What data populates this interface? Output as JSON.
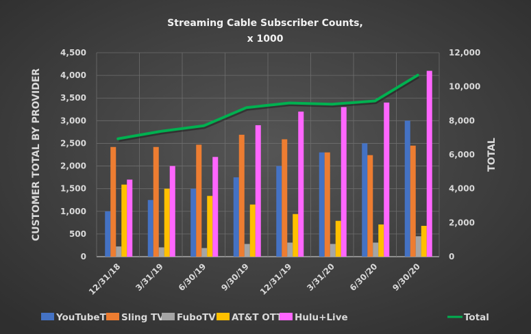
{
  "chart_data": {
    "type": "bar",
    "title": "Streaming Cable Subscriber Counts, x 1000",
    "title_lines": [
      "Streaming Cable Subscriber Counts,",
      "x 1000"
    ],
    "ylabel": "CUSTOMER TOTAL BY PROVIDER",
    "y2label": "TOTAL",
    "ylim": [
      0,
      4500
    ],
    "y2lim": [
      0,
      12000
    ],
    "yticks": [
      "0",
      "500",
      "1,000",
      "1,500",
      "2,000",
      "2,500",
      "3,000",
      "3,500",
      "4,000",
      "4,500"
    ],
    "y2ticks": [
      "0",
      "2,000",
      "4,000",
      "6,000",
      "8,000",
      "10,000",
      "12,000"
    ],
    "grid": true,
    "legend_position": "bottom",
    "categories": [
      "12/31/18",
      "3/31/19",
      "6/30/19",
      "9/30/19",
      "12/31/19",
      "3/31/20",
      "6/30/20",
      "9/30/20"
    ],
    "series": [
      {
        "name": "YouTubeTV",
        "type": "bar",
        "axis": "left",
        "color": "#4472c4",
        "values": [
          1000,
          1250,
          1500,
          1750,
          2000,
          2300,
          2500,
          3000
        ]
      },
      {
        "name": "Sling TV",
        "type": "bar",
        "axis": "left",
        "color": "#ed7d31",
        "values": [
          2420,
          2420,
          2470,
          2690,
          2590,
          2300,
          2240,
          2450
        ]
      },
      {
        "name": "FuboTV",
        "type": "bar",
        "axis": "left",
        "color": "#a5a5a5",
        "values": [
          225,
          205,
          190,
          280,
          310,
          280,
          310,
          450
        ]
      },
      {
        "name": "AT&T OTT",
        "type": "bar",
        "axis": "left",
        "color": "#ffc000",
        "values": [
          1590,
          1500,
          1340,
          1150,
          940,
          790,
          710,
          680
        ]
      },
      {
        "name": "Hulu+Live",
        "type": "bar",
        "axis": "left",
        "color": "#ff66ff",
        "values": [
          1700,
          2000,
          2200,
          2900,
          3200,
          3300,
          3400,
          4100
        ]
      },
      {
        "name": "Total",
        "type": "line",
        "axis": "right",
        "color": "#00b050",
        "values": [
          6935,
          7375,
          7700,
          8770,
          9040,
          8970,
          9160,
          10680
        ]
      }
    ]
  }
}
